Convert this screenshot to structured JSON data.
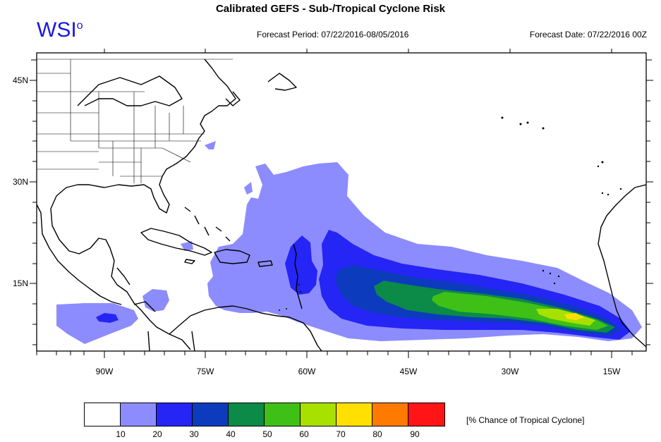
{
  "title": "Calibrated GEFS - Sub-/Tropical Cyclone Risk",
  "brand": {
    "text": "WSI",
    "mark": "o"
  },
  "forecast_period": "Forecast Period: 07/22/2016-08/05/2016",
  "forecast_date": "Forecast Date: 07/22/2016 00Z",
  "lat_labels": [
    "45N",
    "30N",
    "15N"
  ],
  "lon_labels": [
    "90W",
    "75W",
    "60W",
    "45W",
    "30W",
    "15W"
  ],
  "legend": {
    "title": "[% Chance of Tropical Cyclone]",
    "ticks": [
      "10",
      "20",
      "30",
      "40",
      "50",
      "60",
      "70",
      "80",
      "90"
    ],
    "colors": [
      "#ffffff",
      "#8c8cff",
      "#2525f5",
      "#0d3bbd",
      "#0b8a48",
      "#3ec017",
      "#a8e000",
      "#ffe000",
      "#ff7a00",
      "#ff1515"
    ]
  },
  "risk_colors": {
    "lvl10": "#8c8cff",
    "lvl20": "#2525f5",
    "lvl30": "#0d3bbd",
    "lvl40": "#0b8a48",
    "lvl50": "#3ec017",
    "lvl60": "#a8e000",
    "lvl70": "#ffe000"
  }
}
